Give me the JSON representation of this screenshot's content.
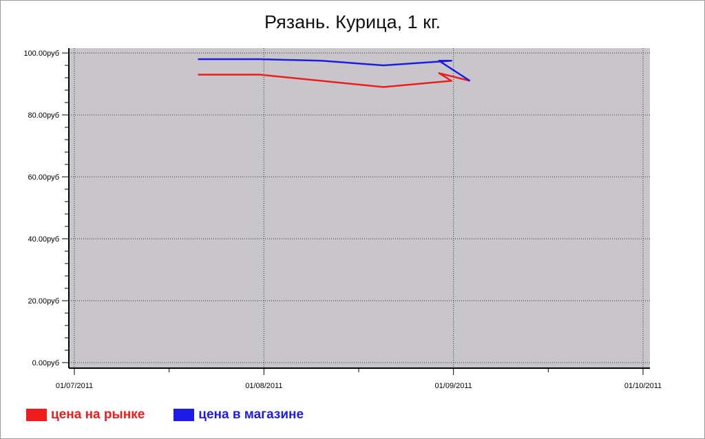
{
  "chart_data": {
    "type": "line",
    "title": "Рязань. Курица, 1 кг.",
    "xlabel": "",
    "ylabel": "",
    "x_ticks": [
      "01/07/2011",
      "01/08/2011",
      "01/09/2011",
      "01/10/2011"
    ],
    "x_range": [
      "2011-07-01",
      "2011-10-01"
    ],
    "y_ticks": [
      "0.00руб",
      "20.00руб",
      "40.00руб",
      "60.00руб",
      "80.00руб",
      "100.00руб"
    ],
    "ylim": [
      0,
      100
    ],
    "grid": true,
    "legend_position": "bottom-left",
    "background": "#c8c6ca",
    "series": [
      {
        "name": "цена на рынке",
        "color": "#ee1c1c",
        "points": [
          {
            "x": "2011-07-21",
            "y": 93
          },
          {
            "x": "2011-07-31",
            "y": 93
          },
          {
            "x": "2011-08-10",
            "y": 91
          },
          {
            "x": "2011-08-20",
            "y": 89
          },
          {
            "x": "2011-08-31",
            "y": 91
          },
          {
            "x": "2011-08-29",
            "y": 93.5
          },
          {
            "x": "2011-09-03",
            "y": 91
          }
        ]
      },
      {
        "name": "цена в магазине",
        "color": "#1c1ce6",
        "points": [
          {
            "x": "2011-07-21",
            "y": 98
          },
          {
            "x": "2011-07-31",
            "y": 98
          },
          {
            "x": "2011-08-10",
            "y": 97.5
          },
          {
            "x": "2011-08-20",
            "y": 96
          },
          {
            "x": "2011-08-31",
            "y": 97.5
          },
          {
            "x": "2011-08-29",
            "y": 97.5
          },
          {
            "x": "2011-09-03",
            "y": 91
          }
        ]
      }
    ]
  },
  "legend": {
    "items": [
      {
        "label": "цена на рынке",
        "color": "#ee1c1c"
      },
      {
        "label": "цена в магазине",
        "color": "#1c1ce6"
      }
    ]
  }
}
